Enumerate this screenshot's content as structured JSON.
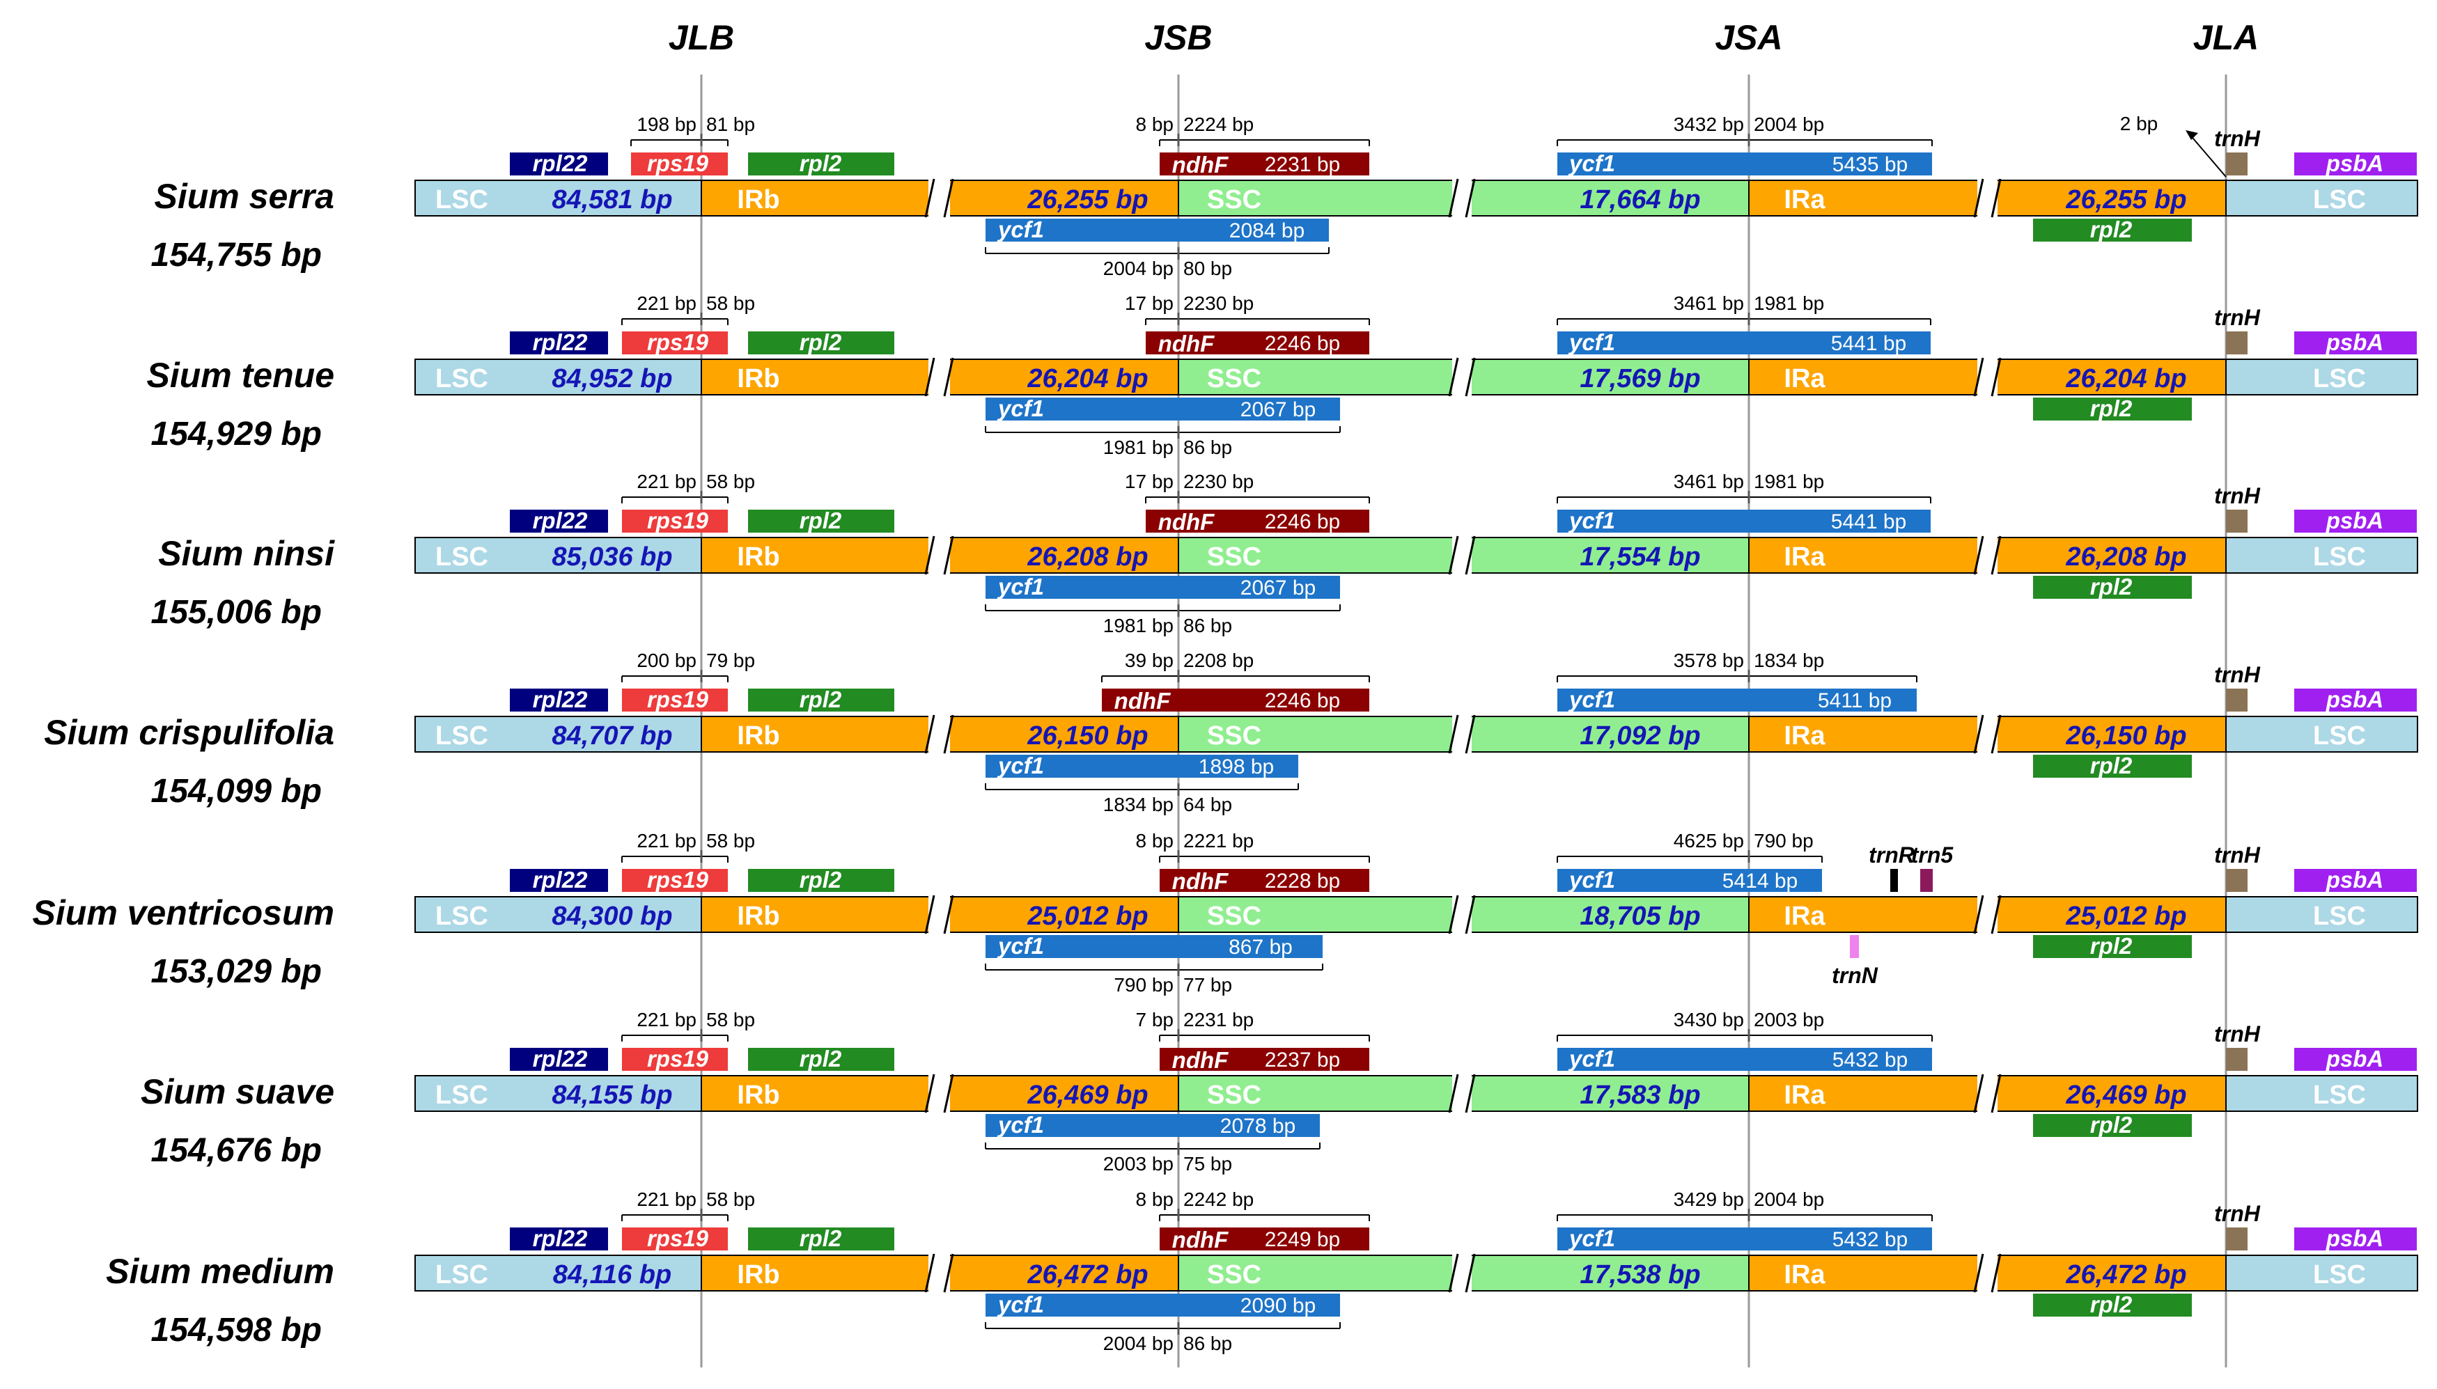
{
  "junctions": [
    "JLB",
    "JSB",
    "JSA",
    "JLA"
  ],
  "regions": {
    "lsc": "LSC",
    "irb": "IRb",
    "ssc": "SSC",
    "ira": "IRa"
  },
  "colors": {
    "lsc": "#ADD8E6",
    "ir": "#FFA500",
    "ssc": "#90EE90",
    "rpl22": "#00007F",
    "rps19": "#EE3B3B",
    "rpl2": "#228B22",
    "ndhF": "#8B0000",
    "ycf1": "#1E74C8",
    "trnH": "#8B7355",
    "psbA": "#A020F0",
    "trnR": "#000000",
    "trn5": "#8B1A5C",
    "trnN": "#EE82EE",
    "len_text": "#1515B5"
  },
  "genes": {
    "rpl22": "rpl22",
    "rps19": "rps19",
    "rpl2": "rpl2",
    "ndhF": "ndhF",
    "ycf1": "ycf1",
    "trnH": "trnH",
    "psbA": "psbA"
  },
  "species": [
    {
      "name": "Sium serra",
      "total": "154,755 bp",
      "lsc": "84,581 bp",
      "ir": "26,255 bp",
      "ssc": "17,664 bp",
      "jlb_left": "198 bp",
      "jlb_right": "81 bp",
      "jsb_left": "8 bp",
      "jsb_right": "2224 bp",
      "ndhf_len": "2231 bp",
      "ycf1_short": "2084 bp",
      "jsb_low_left": "2004 bp",
      "jsb_low_right": "80 bp",
      "jsa_left": "3432 bp",
      "jsa_right": "2004 bp",
      "ycf1_long": "5435 bp",
      "jla_note": "2 bp"
    },
    {
      "name": "Sium tenue",
      "total": "154,929 bp",
      "lsc": "84,952 bp",
      "ir": "26,204 bp",
      "ssc": "17,569 bp",
      "jlb_left": "221 bp",
      "jlb_right": "58 bp",
      "jsb_left": "17 bp",
      "jsb_right": "2230 bp",
      "ndhf_len": "2246 bp",
      "ycf1_short": "2067 bp",
      "jsb_low_left": "1981 bp",
      "jsb_low_right": "86 bp",
      "jsa_left": "3461 bp",
      "jsa_right": "1981 bp",
      "ycf1_long": "5441 bp"
    },
    {
      "name": "Sium ninsi",
      "total": "155,006 bp",
      "lsc": "85,036 bp",
      "ir": "26,208 bp",
      "ssc": "17,554 bp",
      "jlb_left": "221 bp",
      "jlb_right": "58 bp",
      "jsb_left": "17 bp",
      "jsb_right": "2230 bp",
      "ndhf_len": "2246 bp",
      "ycf1_short": "2067 bp",
      "jsb_low_left": "1981 bp",
      "jsb_low_right": "86 bp",
      "jsa_left": "3461 bp",
      "jsa_right": "1981 bp",
      "ycf1_long": "5441 bp"
    },
    {
      "name": "Sium crispulifolia",
      "total": "154,099 bp",
      "lsc": "84,707 bp",
      "ir": "26,150 bp",
      "ssc": "17,092 bp",
      "jlb_left": "200 bp",
      "jlb_right": "79 bp",
      "jsb_left": "39 bp",
      "jsb_right": "2208 bp",
      "ndhf_len": "2246 bp",
      "ycf1_short": "1898 bp",
      "jsb_low_left": "1834 bp",
      "jsb_low_right": "64 bp",
      "jsa_left": "3578 bp",
      "jsa_right": "1834 bp",
      "ycf1_long": "5411 bp"
    },
    {
      "name": "Sium ventricosum",
      "total": "153,029 bp",
      "lsc": "84,300 bp",
      "ir": "25,012 bp",
      "ssc": "18,705 bp",
      "jlb_left": "221 bp",
      "jlb_right": "58 bp",
      "jsb_left": "8 bp",
      "jsb_right": "2221 bp",
      "ndhf_len": "2228 bp",
      "ycf1_short": "867 bp",
      "jsb_low_left": "790 bp",
      "jsb_low_right": "77 bp",
      "jsa_left": "4625 bp",
      "jsa_right": "790 bp",
      "ycf1_long": "5414 bp",
      "extra_labels": {
        "trnR": "trnR",
        "trn5": "trn5",
        "trnN": "trnN"
      }
    },
    {
      "name": "Sium suave",
      "total": "154,676 bp",
      "lsc": "84,155 bp",
      "ir": "26,469 bp",
      "ssc": "17,583 bp",
      "jlb_left": "221 bp",
      "jlb_right": "58 bp",
      "jsb_left": "7 bp",
      "jsb_right": "2231 bp",
      "ndhf_len": "2237 bp",
      "ycf1_short": "2078 bp",
      "jsb_low_left": "2003 bp",
      "jsb_low_right": "75 bp",
      "jsa_left": "3430 bp",
      "jsa_right": "2003 bp",
      "ycf1_long": "5432 bp"
    },
    {
      "name": "Sium medium",
      "total": "154,598 bp",
      "lsc": "84,116 bp",
      "ir": "26,472 bp",
      "ssc": "17,538 bp",
      "jlb_left": "221 bp",
      "jlb_right": "58 bp",
      "jsb_left": "8 bp",
      "jsb_right": "2242 bp",
      "ndhf_len": "2249 bp",
      "ycf1_short": "2090 bp",
      "jsb_low_left": "2004 bp",
      "jsb_low_right": "86 bp",
      "jsa_left": "3429 bp",
      "jsa_right": "2004 bp",
      "ycf1_long": "5432 bp"
    }
  ]
}
